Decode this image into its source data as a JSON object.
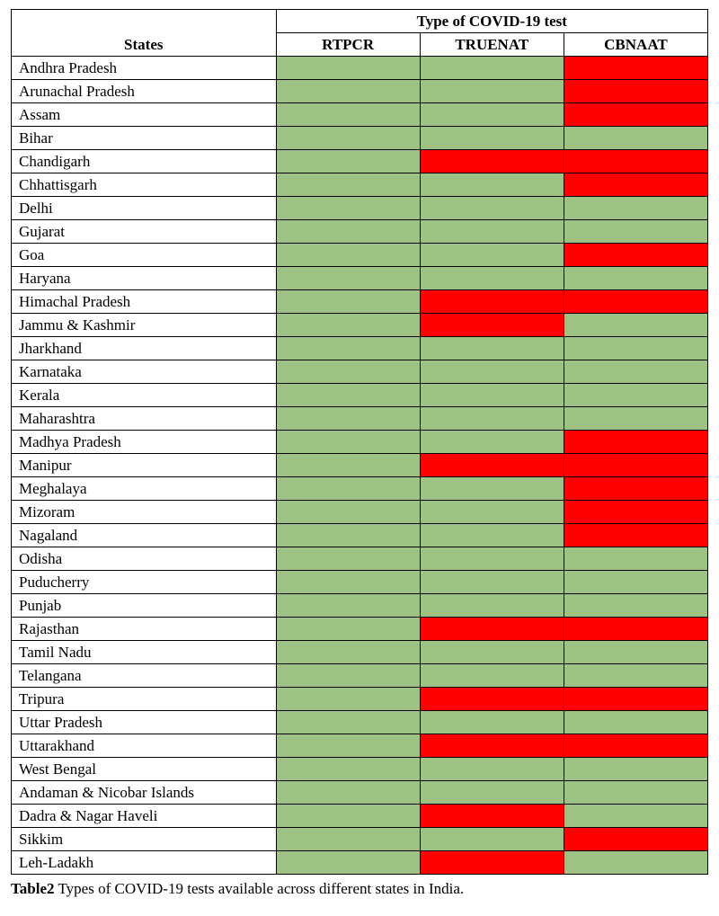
{
  "colors": {
    "green": "#9dc283",
    "red": "#ff0000",
    "border": "#000000",
    "background": "#ffffff",
    "text": "#000000"
  },
  "headers": {
    "states_label": "States",
    "group_label": "Type of COVID-19 test",
    "col1": "RTPCR",
    "col2": "TRUENAT",
    "col3": "CBNAAT"
  },
  "caption": {
    "label": "Table2",
    "text": " Types of COVID-19 tests available across different states in India."
  },
  "rows": [
    {
      "state": "Andhra Pradesh",
      "cells": [
        "green",
        "green",
        "red"
      ]
    },
    {
      "state": "Arunachal Pradesh",
      "cells": [
        "green",
        "green",
        "red"
      ]
    },
    {
      "state": "Assam",
      "cells": [
        "green",
        "green",
        "red"
      ]
    },
    {
      "state": "Bihar",
      "cells": [
        "green",
        "green",
        "green"
      ]
    },
    {
      "state": "Chandigarh",
      "cells": [
        "green",
        "red",
        "red"
      ]
    },
    {
      "state": "Chhattisgarh",
      "cells": [
        "green",
        "green",
        "red"
      ]
    },
    {
      "state": "Delhi",
      "cells": [
        "green",
        "green",
        "green"
      ]
    },
    {
      "state": "Gujarat",
      "cells": [
        "green",
        "green",
        "green"
      ]
    },
    {
      "state": "Goa",
      "cells": [
        "green",
        "green",
        "red"
      ]
    },
    {
      "state": "Haryana",
      "cells": [
        "green",
        "green",
        "green"
      ]
    },
    {
      "state": "Himachal Pradesh",
      "cells": [
        "green",
        "red",
        "red"
      ]
    },
    {
      "state": "Jammu & Kashmir",
      "cells": [
        "green",
        "red",
        "green"
      ]
    },
    {
      "state": "Jharkhand",
      "cells": [
        "green",
        "green",
        "green"
      ]
    },
    {
      "state": "Karnataka",
      "cells": [
        "green",
        "green",
        "green"
      ]
    },
    {
      "state": "Kerala",
      "cells": [
        "green",
        "green",
        "green"
      ]
    },
    {
      "state": "Maharashtra",
      "cells": [
        "green",
        "green",
        "green"
      ]
    },
    {
      "state": "Madhya Pradesh",
      "cells": [
        "green",
        "green",
        "red"
      ]
    },
    {
      "state": "Manipur",
      "cells": [
        "green",
        "red",
        "red"
      ]
    },
    {
      "state": "Meghalaya",
      "cells": [
        "green",
        "green",
        "red"
      ]
    },
    {
      "state": "Mizoram",
      "cells": [
        "green",
        "green",
        "red"
      ]
    },
    {
      "state": "Nagaland",
      "cells": [
        "green",
        "green",
        "red"
      ]
    },
    {
      "state": "Odisha",
      "cells": [
        "green",
        "green",
        "green"
      ]
    },
    {
      "state": "Puducherry",
      "cells": [
        "green",
        "green",
        "green"
      ]
    },
    {
      "state": "Punjab",
      "cells": [
        "green",
        "green",
        "green"
      ]
    },
    {
      "state": "Rajasthan",
      "cells": [
        "green",
        "red",
        "red"
      ]
    },
    {
      "state": "Tamil Nadu",
      "cells": [
        "green",
        "green",
        "green"
      ]
    },
    {
      "state": "Telangana",
      "cells": [
        "green",
        "green",
        "green"
      ]
    },
    {
      "state": "Tripura",
      "cells": [
        "green",
        "red",
        "red"
      ]
    },
    {
      "state": "Uttar Pradesh",
      "cells": [
        "green",
        "green",
        "green"
      ]
    },
    {
      "state": "Uttarakhand",
      "cells": [
        "green",
        "red",
        "red"
      ]
    },
    {
      "state": "West Bengal",
      "cells": [
        "green",
        "green",
        "green"
      ]
    },
    {
      "state": "Andaman & Nicobar Islands",
      "cells": [
        "green",
        "green",
        "green"
      ]
    },
    {
      "state": "Dadra & Nagar Haveli",
      "cells": [
        "green",
        "red",
        "green"
      ]
    },
    {
      "state": "Sikkim",
      "cells": [
        "green",
        "green",
        "red"
      ]
    },
    {
      "state": "Leh-Ladakh",
      "cells": [
        "green",
        "red",
        "green"
      ]
    }
  ]
}
